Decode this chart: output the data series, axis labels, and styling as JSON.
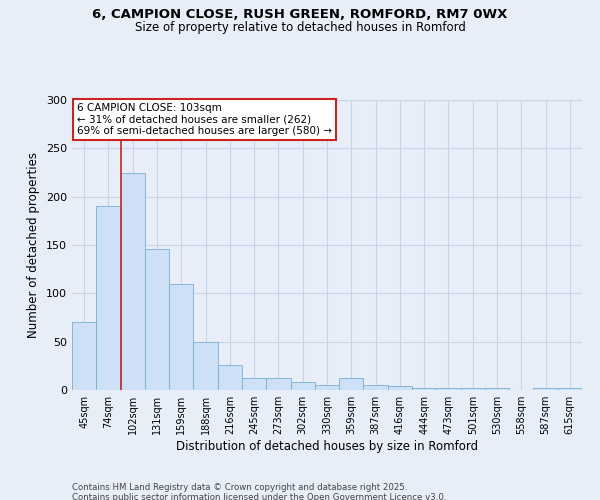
{
  "title_line1": "6, CAMPION CLOSE, RUSH GREEN, ROMFORD, RM7 0WX",
  "title_line2": "Size of property relative to detached houses in Romford",
  "xlabel": "Distribution of detached houses by size in Romford",
  "ylabel": "Number of detached properties",
  "categories": [
    "45sqm",
    "74sqm",
    "102sqm",
    "131sqm",
    "159sqm",
    "188sqm",
    "216sqm",
    "245sqm",
    "273sqm",
    "302sqm",
    "330sqm",
    "359sqm",
    "387sqm",
    "416sqm",
    "444sqm",
    "473sqm",
    "501sqm",
    "530sqm",
    "558sqm",
    "587sqm",
    "615sqm"
  ],
  "values": [
    70,
    190,
    225,
    146,
    110,
    50,
    26,
    12,
    12,
    8,
    5,
    12,
    5,
    4,
    2,
    2,
    2,
    2,
    0,
    2,
    2
  ],
  "bar_color": "#cde0f5",
  "bar_edge_color": "#7aafd4",
  "property_line_color": "#cc2222",
  "annotation_text": "6 CAMPION CLOSE: 103sqm\n← 31% of detached houses are smaller (262)\n69% of semi-detached houses are larger (580) →",
  "annotation_box_color": "white",
  "annotation_box_edge": "#cc2222",
  "grid_color": "#c8d4e8",
  "background_color": "#e8eef8",
  "footer_line1": "Contains HM Land Registry data © Crown copyright and database right 2025.",
  "footer_line2": "Contains public sector information licensed under the Open Government Licence v3.0.",
  "ylim": [
    0,
    300
  ],
  "yticks": [
    0,
    50,
    100,
    150,
    200,
    250,
    300
  ]
}
